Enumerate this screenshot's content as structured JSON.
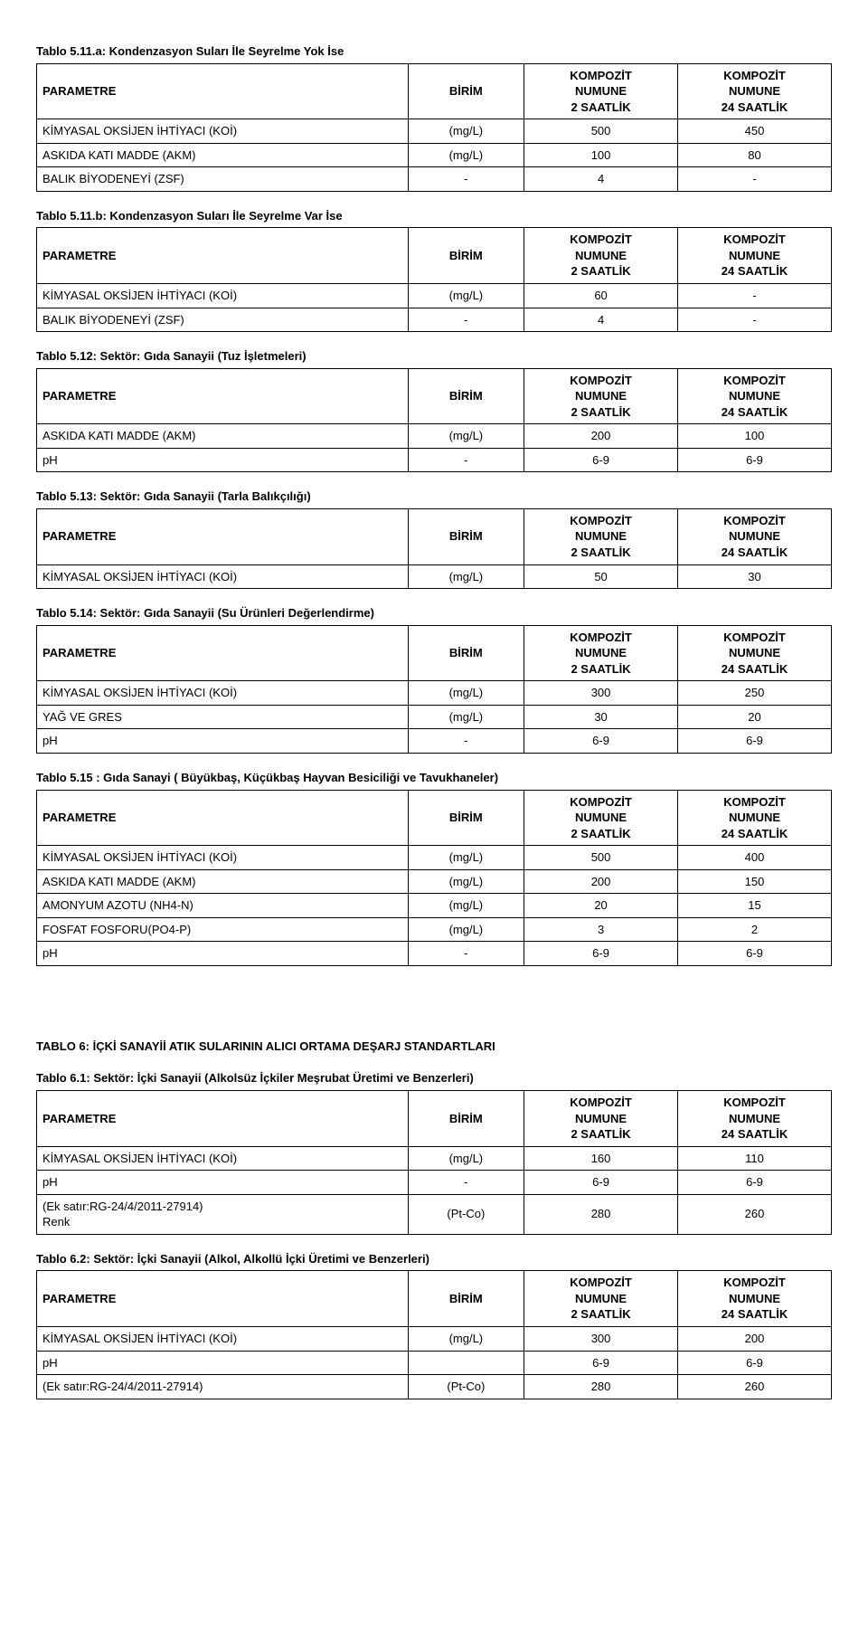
{
  "colors": {
    "text": "#000000",
    "bg": "#ffffff",
    "border": "#000000"
  },
  "typography": {
    "font": "Arial",
    "size_body": 13,
    "size_title": 13,
    "weight_title": "bold"
  },
  "header": {
    "col0": "PARAMETRE",
    "col1": "BİRİM",
    "col2_l1": "KOMPOZİT",
    "col2_l2": "NUMUNE",
    "col2_l3": "2 SAATLİK",
    "col3_l1": "KOMPOZİT",
    "col3_l2": "NUMUNE",
    "col3_l3": "24 SAATLİK"
  },
  "tables": [
    {
      "title": "Tablo 5.11.a: Kondenzasyon Suları İle Seyrelme Yok İse",
      "rows": [
        {
          "p": "KİMYASAL OKSİJEN İHTİYACI (KOİ)",
          "u": "(mg/L)",
          "a": "500",
          "b": "450"
        },
        {
          "p": "ASKIDA KATI MADDE (AKM)",
          "u": "(mg/L)",
          "a": "100",
          "b": "80"
        },
        {
          "p": "BALIK BİYODENEYİ (ZSF)",
          "u": "-",
          "a": "4",
          "b": "-"
        }
      ]
    },
    {
      "title": "Tablo 5.11.b: Kondenzasyon Suları İle Seyrelme Var İse",
      "rows": [
        {
          "p": "KİMYASAL OKSİJEN İHTİYACI (KOİ)",
          "u": "(mg/L)",
          "a": "60",
          "b": "-"
        },
        {
          "p": "BALIK BİYODENEYİ (ZSF)",
          "u": "-",
          "a": "4",
          "b": "-"
        }
      ]
    },
    {
      "title": "Tablo 5.12: Sektör: Gıda Sanayii (Tuz İşletmeleri)",
      "rows": [
        {
          "p": "ASKIDA KATI MADDE (AKM)",
          "u": "(mg/L)",
          "a": "200",
          "b": "100"
        },
        {
          "p": "pH",
          "u": "-",
          "a": "6-9",
          "b": "6-9"
        }
      ]
    },
    {
      "title": "Tablo 5.13: Sektör: Gıda Sanayii (Tarla Balıkçılığı)",
      "rows": [
        {
          "p": "KİMYASAL OKSİJEN İHTİYACI (KOİ)",
          "u": "(mg/L)",
          "a": "50",
          "b": "30"
        }
      ]
    },
    {
      "title": "Tablo 5.14: Sektör: Gıda Sanayii (Su Ürünleri Değerlendirme)",
      "rows": [
        {
          "p": "KİMYASAL OKSİJEN İHTİYACI (KOİ)",
          "u": "(mg/L)",
          "a": "300",
          "b": "250"
        },
        {
          "p": "YAĞ VE GRES",
          "u": "(mg/L)",
          "a": "30",
          "b": "20"
        },
        {
          "p": "pH",
          "u": "-",
          "a": "6-9",
          "b": "6-9"
        }
      ]
    },
    {
      "title": "Tablo 5.15 : Gıda Sanayi ( Büyükbaş, Küçükbaş Hayvan Besiciliği ve Tavukhaneler)",
      "rows": [
        {
          "p": "KİMYASAL OKSİJEN İHTİYACI (KOİ)",
          "u": "(mg/L)",
          "a": "500",
          "b": "400"
        },
        {
          "p": "ASKIDA KATI MADDE (AKM)",
          "u": "(mg/L)",
          "a": "200",
          "b": "150"
        },
        {
          "p": "AMONYUM AZOTU (NH4-N)",
          "u": "(mg/L)",
          "a": "20",
          "b": "15"
        },
        {
          "p": "FOSFAT FOSFORU(PO4-P)",
          "u": "(mg/L)",
          "a": "3",
          "b": "2"
        },
        {
          "p": "pH",
          "u": "-",
          "a": "6-9",
          "b": "6-9"
        }
      ]
    }
  ],
  "section6": {
    "heading": "TABLO 6: İÇKİ SANAYİİ ATIK SULARININ ALICI ORTAMA DEŞARJ STANDARTLARI",
    "tables": [
      {
        "title": "Tablo 6.1: Sektör: İçki Sanayii (Alkolsüz İçkiler Meşrubat Üretimi ve Benzerleri)",
        "rows": [
          {
            "p": "KİMYASAL OKSİJEN İHTİYACI (KOİ)",
            "u": "(mg/L)",
            "a": "160",
            "b": "110"
          },
          {
            "p": "pH",
            "u": "-",
            "a": "6-9",
            "b": "6-9"
          },
          {
            "p": "(Ek satır:RG-24/4/2011-27914)\nRenk",
            "u": "(Pt-Co)",
            "a": "280",
            "b": "260"
          }
        ]
      },
      {
        "title": "Tablo 6.2: Sektör: İçki Sanayii (Alkol, Alkollü İçki Üretimi ve Benzerleri)",
        "rows": [
          {
            "p": "KİMYASAL OKSİJEN İHTİYACI (KOİ)",
            "u": "(mg/L)",
            "a": "300",
            "b": "200"
          },
          {
            "p": "pH",
            "u": "",
            "a": "6-9",
            "b": "6-9"
          },
          {
            "p": "(Ek satır:RG-24/4/2011-27914)",
            "u": "(Pt-Co)",
            "a": "280",
            "b": "260"
          }
        ]
      }
    ]
  }
}
